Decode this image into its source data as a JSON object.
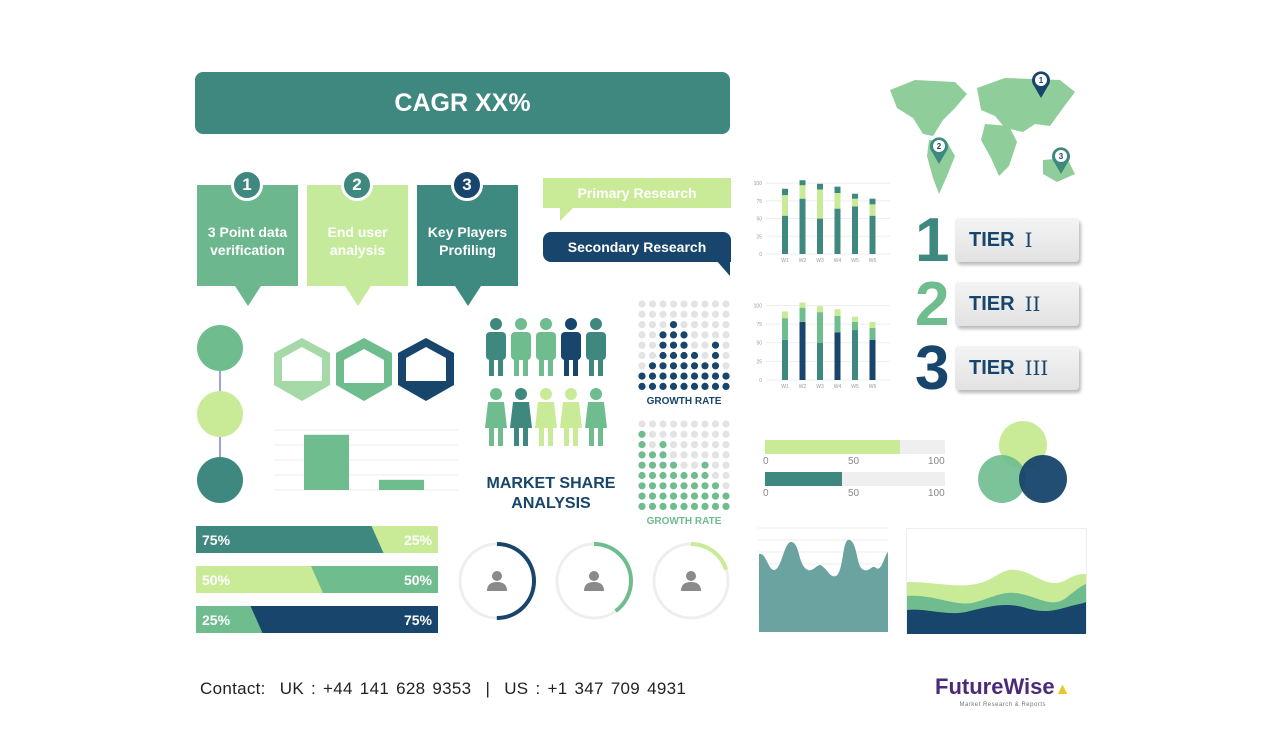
{
  "colors": {
    "teal": "#3f8880",
    "green": "#6fbc8e",
    "light": "#c9eb98",
    "navy": "#17456b",
    "grey": "#e3e3e3"
  },
  "banner": {
    "title": "CAGR XX%"
  },
  "steps": [
    {
      "num": "1",
      "label": "3 Point data verification",
      "color": "#6db78f"
    },
    {
      "num": "2",
      "label": "End user analysis",
      "color": "#c6ea9b"
    },
    {
      "num": "3",
      "label": "Key Players Profiling",
      "color": "#3e8a80"
    }
  ],
  "research": {
    "primary": "Primary Research",
    "secondary": "Secondary Research"
  },
  "stacked_charts": {
    "categories": [
      "W1",
      "W2",
      "W3",
      "W4",
      "W5",
      "W6"
    ],
    "yticks": [
      "0",
      "25",
      "50",
      "75",
      "100"
    ],
    "segments": [
      [
        54,
        29,
        9
      ],
      [
        78,
        19,
        7
      ],
      [
        50,
        41,
        8
      ],
      [
        64,
        22,
        9
      ],
      [
        67,
        11,
        7
      ],
      [
        54,
        16,
        8
      ]
    ]
  },
  "map": {
    "pins": [
      "1",
      "2",
      "3"
    ]
  },
  "tiers": [
    {
      "num": "1",
      "label": "TIER",
      "roman": "I",
      "color": "#3f8880"
    },
    {
      "num": "2",
      "label": "TIER",
      "roman": "II",
      "color": "#6fbc8e"
    },
    {
      "num": "3",
      "label": "TIER",
      "roman": "III",
      "color": "#17456b"
    }
  ],
  "market_share": {
    "title_line1": "MARKET SHARE",
    "title_line2": "ANALYSIS"
  },
  "growth": [
    {
      "label": "GROWTH RATE",
      "color": "#17456b",
      "heights": [
        2,
        3,
        6,
        7,
        6,
        4,
        3,
        5,
        2
      ]
    },
    {
      "label": "GROWTH RATE",
      "color": "#6fbc8e",
      "heights": [
        8,
        6,
        7,
        5,
        4,
        4,
        5,
        3,
        2
      ]
    }
  ],
  "progress": [
    {
      "value": 75,
      "color": "#c9eb98",
      "ticks": [
        "0",
        "50",
        "100"
      ]
    },
    {
      "value": 43,
      "color": "#3f8880",
      "ticks": [
        "0",
        "50",
        "100"
      ]
    }
  ],
  "splits": [
    {
      "left": "75%",
      "right": "25%",
      "lv": 75,
      "lc": "#3f8880",
      "rc": "#c9eb98"
    },
    {
      "left": "50%",
      "right": "50%",
      "lv": 50,
      "lc": "#c9eb98",
      "rc": "#6fbc8e"
    },
    {
      "left": "25%",
      "right": "75%",
      "lv": 25,
      "lc": "#6fbc8e",
      "rc": "#17456b"
    }
  ],
  "donuts": [
    {
      "value": 50,
      "color": "#17456b"
    },
    {
      "value": 40,
      "color": "#6fbc8e"
    },
    {
      "value": 20,
      "color": "#c9eb98"
    }
  ],
  "small_bar": {
    "values": [
      92,
      17
    ]
  },
  "footer": {
    "contact": "Contact:",
    "uk": "UK : +44 141 628 9353",
    "sep": "|",
    "us": "US : +1 347 709 4931"
  },
  "logo": {
    "name": "FutureWise",
    "tagline": "Market Research & Reports"
  }
}
